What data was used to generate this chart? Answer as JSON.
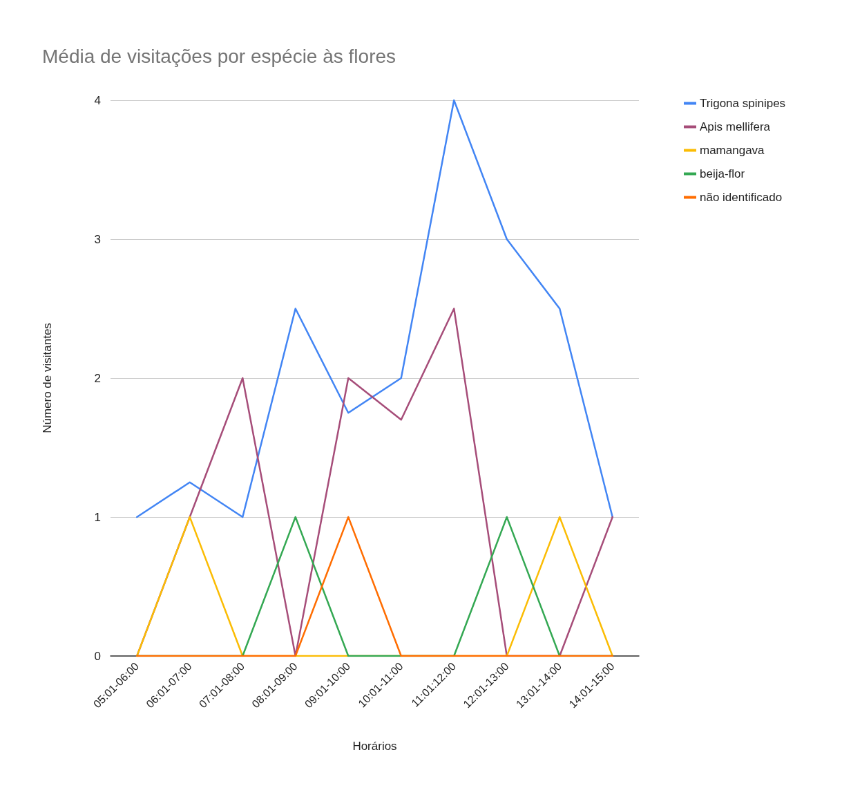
{
  "chart_data": {
    "type": "line",
    "title": "Média de visitações por espécie às flores",
    "xlabel": "Horários",
    "ylabel": "Número de visitantes",
    "categories": [
      "05:01-06:00",
      "06:01-07:00",
      "07:01-08:00",
      "08:01-09:00",
      "09:01-10:00",
      "10:01-11:00",
      "11:01:12:00",
      "12:01-13:00",
      "13:01-14:00",
      "14:01-15:00"
    ],
    "series": [
      {
        "name": "Trigona spinipes",
        "color": "#4285f4",
        "values": [
          1,
          1.25,
          1,
          2.5,
          1.75,
          2,
          4,
          3,
          2.5,
          1
        ]
      },
      {
        "name": "Apis mellifera",
        "color": "#a64d79",
        "values": [
          0,
          1,
          2,
          0,
          2,
          1.7,
          2.5,
          0,
          0,
          1
        ]
      },
      {
        "name": "mamangava",
        "color": "#fbbc04",
        "values": [
          0,
          1,
          0,
          0,
          0,
          0,
          0,
          0,
          1,
          0
        ]
      },
      {
        "name": "beija-flor",
        "color": "#34a853",
        "values": [
          0,
          0,
          0,
          1,
          0,
          0,
          0,
          1,
          0,
          0
        ]
      },
      {
        "name": "não identificado",
        "color": "#ff6d01",
        "values": [
          0,
          0,
          0,
          0,
          1,
          0,
          0,
          0,
          0,
          0
        ]
      }
    ],
    "ylim": [
      0,
      4
    ],
    "yticks": [
      0,
      1,
      2,
      3,
      4
    ],
    "grid": "y",
    "legend": "right",
    "marker": "none",
    "line_style": "solid"
  }
}
